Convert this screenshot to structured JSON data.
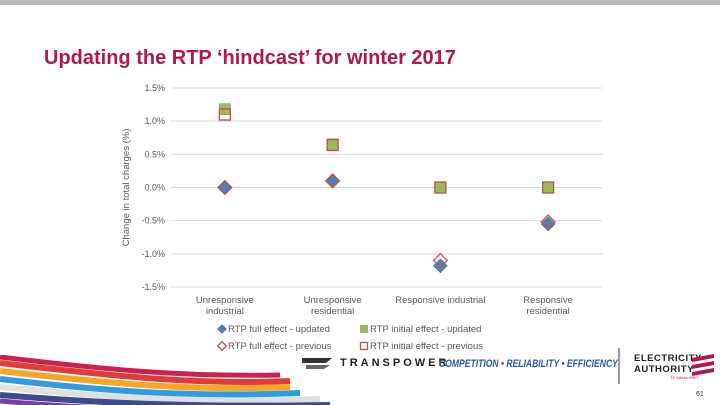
{
  "slide": {
    "title": "Updating the RTP ‘hindcast’ for winter 2017",
    "page_number": "61"
  },
  "footer": {
    "transpower": "TRANSPOWER",
    "tagline": "COMPETITION • RELIABILITY • EFFICIENCY",
    "ea_line1": "ELECTRICITY",
    "ea_line2": "AUTHORITY",
    "ea_sub": "TE MANA HIKO",
    "colors": {
      "accent": "#b0194b",
      "tagline": "#2b5aa0"
    }
  },
  "chart_data": {
    "type": "scatter",
    "ylabel": "Change in total charges (%)",
    "xlabel": "",
    "ylim": [
      -1.5,
      1.5
    ],
    "yticks": [
      1.5,
      1.0,
      0.5,
      0.0,
      -0.5,
      -1.0,
      -1.5
    ],
    "ytick_labels": [
      "1.5%",
      "1.0%",
      "0.5%",
      "0.0%",
      "-0.5%",
      "-1.0%",
      "-1.5%"
    ],
    "grid": true,
    "legend": "bottom",
    "categories": [
      [
        "Unresponsive",
        "industrial"
      ],
      [
        "Unresponsive",
        "residential"
      ],
      [
        "Responsive industrial"
      ],
      [
        "Responsive",
        "residential"
      ]
    ],
    "series": [
      {
        "name": "RTP full effect - updated",
        "marker": "diamond",
        "filled": true,
        "color": "#4f81bd",
        "values": [
          0.0,
          0.1,
          -1.18,
          -0.55
        ]
      },
      {
        "name": "RTP initial effect - updated",
        "marker": "square",
        "filled": true,
        "color": "#9bbb59",
        "values": [
          1.18,
          0.65,
          0.0,
          0.0
        ]
      },
      {
        "name": "RTP full effect - previous",
        "marker": "diamond",
        "filled": false,
        "color": "#c0504d",
        "values": [
          0.0,
          0.1,
          -1.1,
          -0.52
        ]
      },
      {
        "name": "RTP initial effect - previous",
        "marker": "square",
        "filled": false,
        "color": "#c0504d",
        "values": [
          1.1,
          0.64,
          0.0,
          0.0
        ]
      }
    ]
  }
}
